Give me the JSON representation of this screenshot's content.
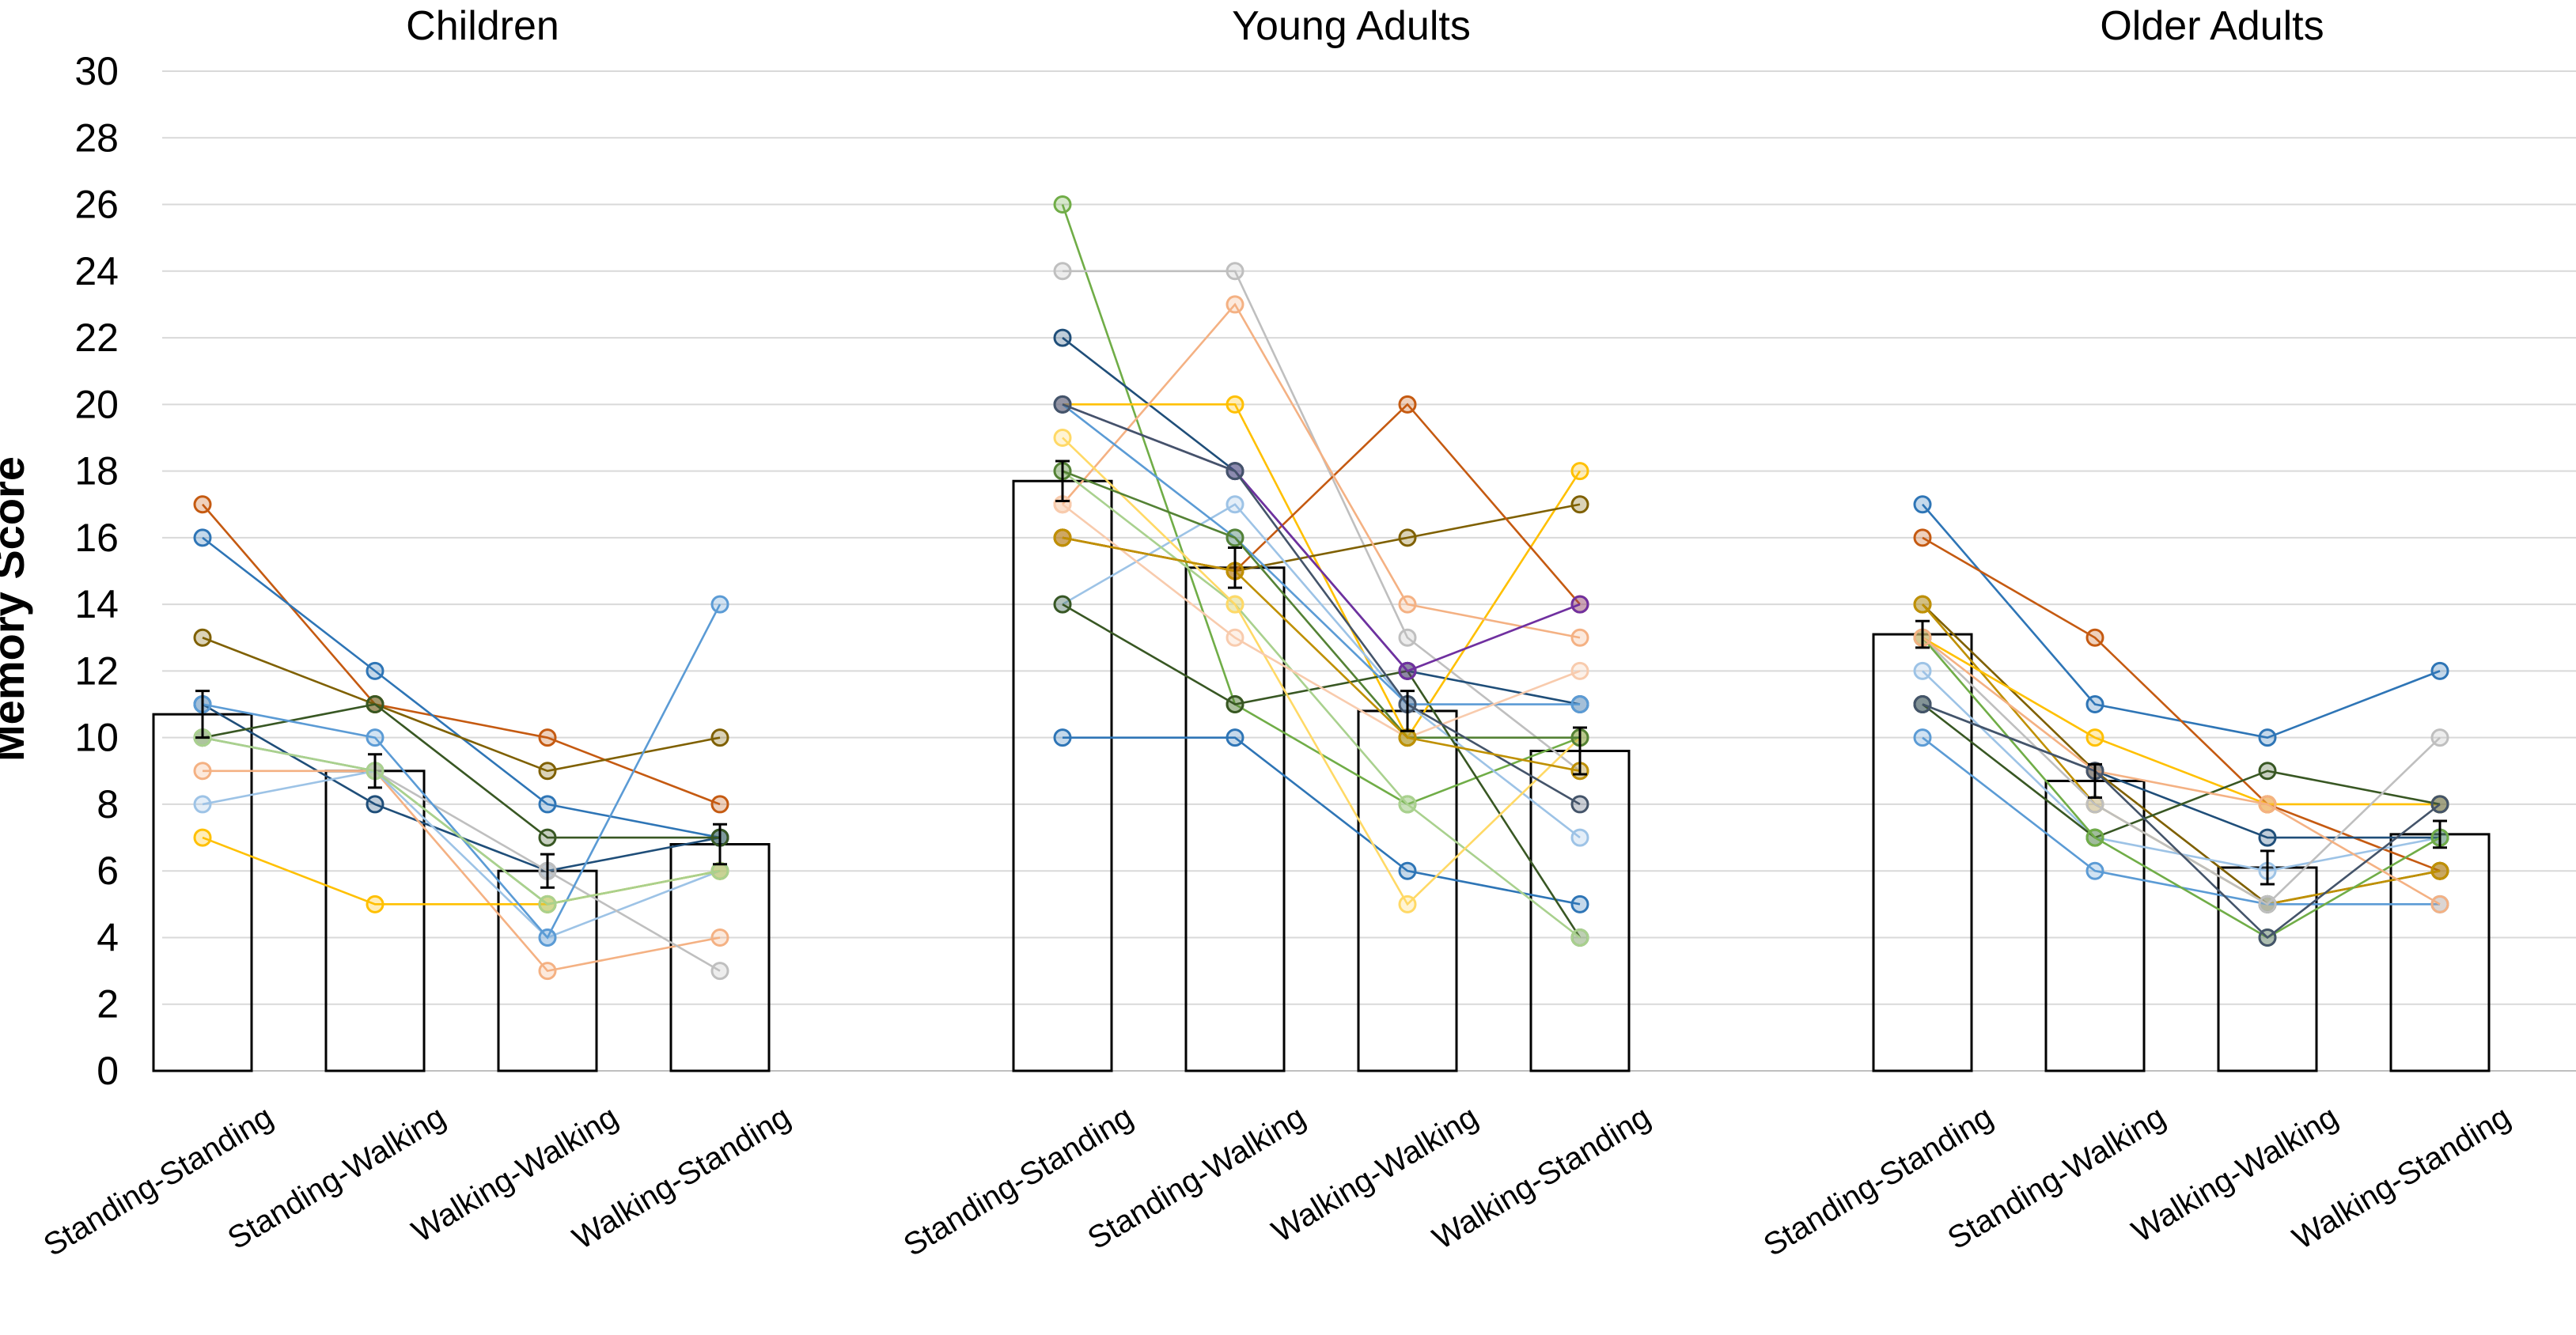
{
  "chart_data": {
    "type": "bar",
    "ylabel": "Memory Score",
    "ylim": [
      0,
      30
    ],
    "yticks": [
      "0",
      "2",
      "4",
      "6",
      "8",
      "10",
      "12",
      "14",
      "16",
      "18",
      "20",
      "22",
      "24",
      "26",
      "28",
      "30"
    ],
    "grid": true,
    "categories": [
      "Standing-Standing",
      "Standing-Walking",
      "Walking-Walking",
      "Walking-Standing"
    ],
    "groups": [
      {
        "name": "Children",
        "means": [
          10.7,
          9.0,
          6.0,
          6.8
        ],
        "errors": [
          0.7,
          0.5,
          0.5,
          0.6
        ],
        "participants": [
          {
            "color": "#c55a11",
            "values": [
              17,
              11,
              10,
              8
            ]
          },
          {
            "color": "#2e75b6",
            "values": [
              16,
              12,
              8,
              7
            ]
          },
          {
            "color": "#7f6000",
            "values": [
              13,
              11,
              9,
              10
            ]
          },
          {
            "color": "#1f4e79",
            "values": [
              11,
              8,
              6,
              7
            ]
          },
          {
            "color": "#70ad47",
            "values": [
              10,
              9,
              5,
              6
            ]
          },
          {
            "color": "#f4b183",
            "values": [
              9,
              9,
              3,
              4
            ]
          },
          {
            "color": "#9dc3e6",
            "values": [
              8,
              9,
              4,
              6
            ]
          },
          {
            "color": "#ffc000",
            "values": [
              7,
              5,
              5,
              6
            ]
          },
          {
            "color": "#385723",
            "values": [
              10,
              11,
              7,
              7
            ]
          },
          {
            "color": "#bfbfbf",
            "values": [
              10,
              9,
              6,
              3
            ]
          },
          {
            "color": "#5b9bd5",
            "values": [
              11,
              10,
              4,
              14
            ]
          },
          {
            "color": "#a9d18e",
            "values": [
              10,
              9,
              5,
              6
            ]
          }
        ]
      },
      {
        "name": "Young Adults",
        "means": [
          17.7,
          15.1,
          10.8,
          9.6
        ],
        "errors": [
          0.6,
          0.6,
          0.6,
          0.7
        ],
        "participants": [
          {
            "color": "#70ad47",
            "values": [
              26,
              11,
              8,
              10
            ]
          },
          {
            "color": "#bfbfbf",
            "values": [
              24,
              24,
              13,
              9
            ]
          },
          {
            "color": "#1f4e79",
            "values": [
              22,
              18,
              12,
              11
            ]
          },
          {
            "color": "#ffc000",
            "values": [
              20,
              20,
              10,
              18
            ]
          },
          {
            "color": "#7f6000",
            "values": [
              16,
              15,
              16,
              17
            ]
          },
          {
            "color": "#c55a11",
            "values": [
              16,
              15,
              20,
              14
            ]
          },
          {
            "color": "#f4b183",
            "values": [
              17,
              23,
              14,
              13
            ]
          },
          {
            "color": "#9dc3e6",
            "values": [
              14,
              17,
              11,
              7
            ]
          },
          {
            "color": "#2e75b6",
            "values": [
              10,
              10,
              6,
              5
            ]
          },
          {
            "color": "#385723",
            "values": [
              14,
              11,
              12,
              4
            ]
          },
          {
            "color": "#7030a0",
            "values": [
              20,
              18,
              12,
              14
            ]
          },
          {
            "color": "#a9d18e",
            "values": [
              18,
              14,
              8,
              4
            ]
          },
          {
            "color": "#ffd966",
            "values": [
              19,
              14,
              5,
              10
            ]
          },
          {
            "color": "#5b9bd5",
            "values": [
              20,
              16,
              11,
              11
            ]
          },
          {
            "color": "#f8cbad",
            "values": [
              17,
              13,
              10,
              12
            ]
          },
          {
            "color": "#548235",
            "values": [
              18,
              16,
              10,
              10
            ]
          },
          {
            "color": "#44546a",
            "values": [
              20,
              18,
              11,
              8
            ]
          },
          {
            "color": "#bf9000",
            "values": [
              16,
              15,
              10,
              9
            ]
          }
        ]
      },
      {
        "name": "Older Adults",
        "means": [
          13.1,
          8.7,
          6.1,
          7.1
        ],
        "errors": [
          0.4,
          0.5,
          0.5,
          0.4
        ],
        "participants": [
          {
            "color": "#2e75b6",
            "values": [
              17,
              11,
              10,
              12
            ]
          },
          {
            "color": "#c55a11",
            "values": [
              16,
              13,
              8,
              6
            ]
          },
          {
            "color": "#7f6000",
            "values": [
              14,
              9,
              5,
              6
            ]
          },
          {
            "color": "#bf9000",
            "values": [
              14,
              8,
              5,
              6
            ]
          },
          {
            "color": "#ffc000",
            "values": [
              13,
              10,
              8,
              8
            ]
          },
          {
            "color": "#9dc3e6",
            "values": [
              12,
              7,
              6,
              7
            ]
          },
          {
            "color": "#1f4e79",
            "values": [
              11,
              9,
              7,
              7
            ]
          },
          {
            "color": "#5b9bd5",
            "values": [
              10,
              6,
              5,
              5
            ]
          },
          {
            "color": "#385723",
            "values": [
              11,
              7,
              9,
              8
            ]
          },
          {
            "color": "#bfbfbf",
            "values": [
              13,
              8,
              5,
              10
            ]
          },
          {
            "color": "#70ad47",
            "values": [
              13,
              7,
              4,
              7
            ]
          },
          {
            "color": "#f4b183",
            "values": [
              13,
              9,
              8,
              5
            ]
          },
          {
            "color": "#44546a",
            "values": [
              11,
              9,
              4,
              8
            ]
          }
        ]
      }
    ]
  }
}
